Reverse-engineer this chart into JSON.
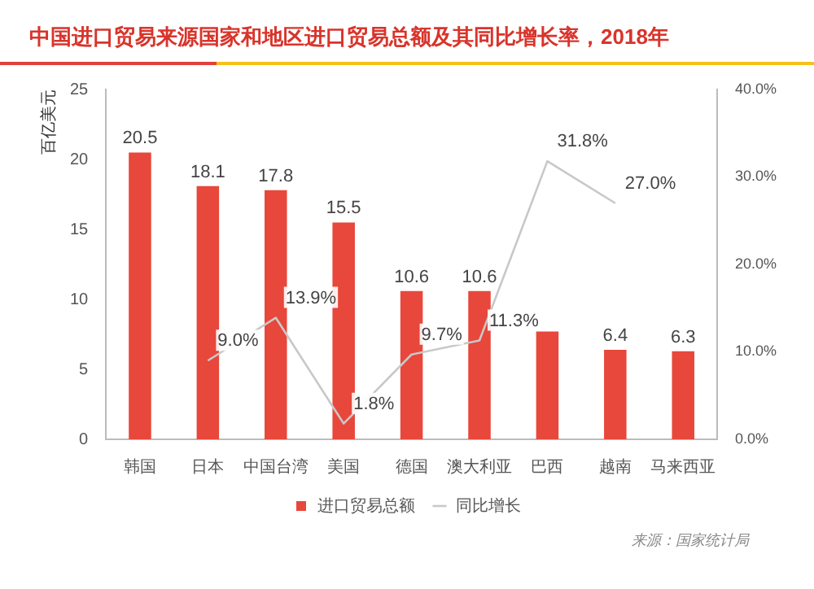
{
  "chart_data": {
    "type": "bar",
    "title": "中国进口贸易来源国家和地区进口贸易总额及其同比增长率，2018年",
    "ylabel": "百亿美元",
    "categories": [
      "韩国",
      "日本",
      "中国台湾",
      "美国",
      "德国",
      "澳大利亚",
      "巴西",
      "越南",
      "马来西亚"
    ],
    "series": [
      {
        "name": "进口贸易总额",
        "color": "#e8473b",
        "values": [
          20.5,
          18.1,
          17.8,
          15.5,
          10.6,
          10.6,
          7.7,
          6.4,
          6.3
        ],
        "value_labels": [
          "20.5",
          "18.1",
          "17.8",
          "15.5",
          "10.6",
          "10.6",
          null,
          "6.4",
          "6.3"
        ]
      },
      {
        "name": "同比增长",
        "type": "line",
        "axis": "y2",
        "color": "#c8c8c8",
        "values": [
          null,
          9.0,
          13.9,
          1.8,
          9.7,
          11.3,
          31.8,
          27.0,
          null
        ],
        "value_labels": [
          null,
          "9.0%",
          "13.9%",
          "1.8%",
          "9.7%",
          "11.3%",
          "31.8%",
          "27.0%",
          null
        ]
      }
    ],
    "ylim": [
      0,
      25
    ],
    "yticks": [
      0,
      5,
      10,
      15,
      20,
      25
    ],
    "y2lim": [
      0,
      40
    ],
    "y2ticks": [
      {
        "value": 0,
        "label": "0.0%"
      },
      {
        "value": 10,
        "label": "10.0%"
      },
      {
        "value": 20,
        "label": "20.0%"
      },
      {
        "value": 30,
        "label": "30.0%"
      },
      {
        "value": 40,
        "label": "40.0%"
      }
    ],
    "grid": false,
    "legend": "bottom",
    "marker": "none",
    "line_style": "solid",
    "annotations": [
      "来源：国家统计局"
    ]
  }
}
